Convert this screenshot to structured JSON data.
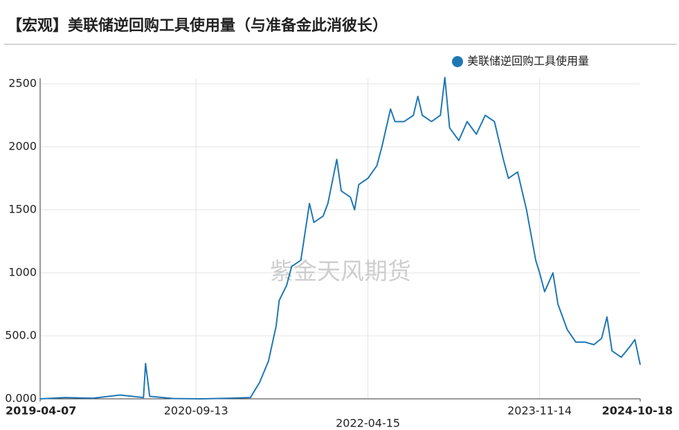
{
  "chart_data": {
    "type": "line",
    "title": "【宏观】美联储逆回购工具使用量（与准备金此消彼长）",
    "watermark": "紫金天风期货",
    "legend_position": "top-right",
    "grid": true,
    "x": [
      "2019-04-07",
      "2019-07-01",
      "2019-10-01",
      "2020-01-01",
      "2020-03-20",
      "2020-03-27",
      "2020-04-10",
      "2020-07-01",
      "2020-10-01",
      "2021-01-01",
      "2021-03-15",
      "2021-04-15",
      "2021-05-15",
      "2021-06-10",
      "2021-06-20",
      "2021-07-15",
      "2021-08-01",
      "2021-09-01",
      "2021-09-30",
      "2021-10-15",
      "2021-11-15",
      "2021-12-01",
      "2021-12-31",
      "2022-01-15",
      "2022-02-15",
      "2022-03-01",
      "2022-03-15",
      "2022-04-15",
      "2022-05-15",
      "2022-06-01",
      "2022-06-30",
      "2022-07-15",
      "2022-08-15",
      "2022-09-15",
      "2022-09-30",
      "2022-10-15",
      "2022-11-15",
      "2022-12-15",
      "2022-12-30",
      "2023-01-15",
      "2023-02-15",
      "2023-03-15",
      "2023-04-15",
      "2023-05-15",
      "2023-06-15",
      "2023-07-15",
      "2023-08-01",
      "2023-09-01",
      "2023-10-01",
      "2023-11-01",
      "2023-11-14",
      "2023-12-01",
      "2023-12-29",
      "2024-01-15",
      "2024-02-15",
      "2024-03-15",
      "2024-04-15",
      "2024-05-15",
      "2024-06-10",
      "2024-06-28",
      "2024-07-15",
      "2024-08-15",
      "2024-09-15",
      "2024-09-30",
      "2024-10-18"
    ],
    "series": [
      {
        "name": "美联储逆回购工具使用量",
        "color": "#1f77b4",
        "values": [
          0,
          10,
          5,
          30,
          10,
          280,
          20,
          2,
          0,
          5,
          10,
          130,
          300,
          580,
          780,
          900,
          1050,
          1100,
          1550,
          1400,
          1450,
          1550,
          1900,
          1650,
          1600,
          1500,
          1700,
          1750,
          1850,
          2000,
          2300,
          2200,
          2200,
          2250,
          2400,
          2250,
          2200,
          2250,
          2550,
          2150,
          2050,
          2200,
          2100,
          2250,
          2200,
          1900,
          1750,
          1800,
          1500,
          1100,
          1000,
          850,
          1000,
          750,
          550,
          450,
          450,
          430,
          480,
          650,
          380,
          330,
          420,
          470,
          270
        ]
      }
    ],
    "xlim": [
      "2019-04-07",
      "2024-10-18"
    ],
    "xticks": [
      "2019-04-07",
      "2020-09-13",
      "2022-04-15",
      "2023-11-14",
      "2024-10-18"
    ],
    "ylim": [
      0,
      2500
    ],
    "yticks": [
      {
        "value": 0,
        "label": "0.000"
      },
      {
        "value": 500,
        "label": "500.0"
      },
      1000,
      1500,
      2000,
      2500
    ]
  }
}
